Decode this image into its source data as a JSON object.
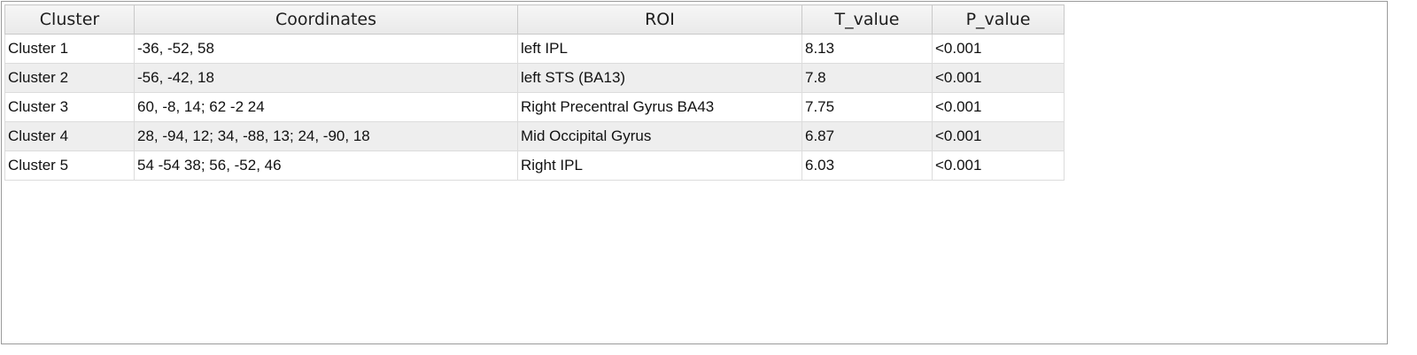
{
  "table": {
    "columns": [
      "Cluster",
      "Coordinates",
      "ROI",
      "T_value",
      "P_value"
    ],
    "rows": [
      [
        "Cluster 1",
        "-36, -52, 58",
        "left IPL",
        "8.13",
        "<0.001"
      ],
      [
        "Cluster 2",
        "-56, -42, 18",
        "left STS (BA13)",
        "7.8",
        "<0.001"
      ],
      [
        "Cluster 3",
        "60, -8, 14; 62 -2 24",
        "Right Precentral Gyrus BA43",
        "7.75",
        "<0.001"
      ],
      [
        "Cluster 4",
        "28, -94, 12; 34, -88, 13; 24, -90, 18",
        "Mid Occipital Gyrus",
        "6.87",
        "<0.001"
      ],
      [
        "Cluster 5",
        "54 -54 38; 56, -52, 46",
        "Right IPL",
        "6.03",
        "<0.001"
      ]
    ]
  },
  "colors": {
    "header_bg": "#ececec",
    "row_alt_bg": "#eeeeee",
    "grid_line": "#dcdcdc",
    "frame_border": "#9a9a9a"
  }
}
